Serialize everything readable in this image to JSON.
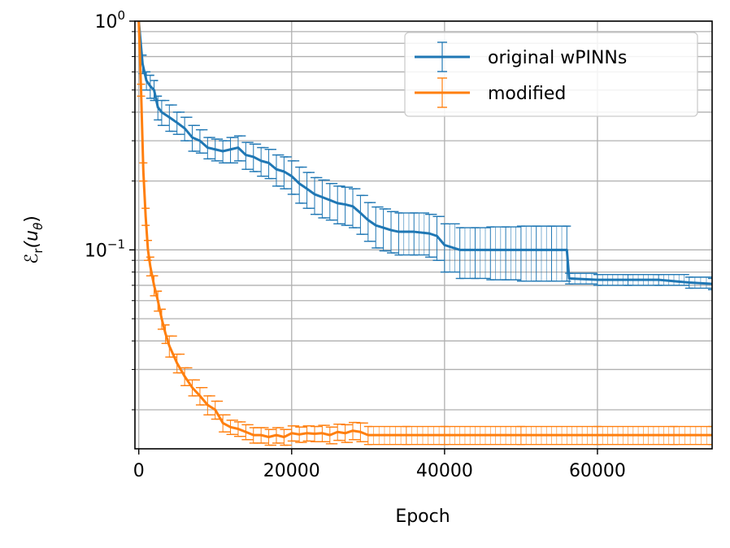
{
  "chart_data": {
    "type": "line",
    "xlabel": "Epoch",
    "ylabel": "ℰr(uθ)",
    "ylabel_main": "ℰ",
    "ylabel_sub": "r",
    "ylabel_rest": "(u",
    "ylabel_sub2": "θ",
    "ylabel_close": ")",
    "xlim": [
      -500,
      75000
    ],
    "ylim": [
      0.0135,
      1.0
    ],
    "yscale": "log",
    "grid": true,
    "legend_position": "top-right",
    "x_ticks": [
      0,
      20000,
      40000,
      60000
    ],
    "x_tick_labels": [
      "0",
      "20000",
      "40000",
      "60000"
    ],
    "y_ticks": [
      {
        "value": 1.0,
        "base": "10",
        "exp": "0"
      },
      {
        "value": 0.1,
        "base": "10",
        "exp": "−1"
      }
    ],
    "series": [
      {
        "name": "original wPINNs",
        "color": "#1f77b4",
        "points": [
          [
            0,
            1.0,
            0.0
          ],
          [
            500,
            0.65,
            0.06
          ],
          [
            1000,
            0.55,
            0.05
          ],
          [
            1500,
            0.52,
            0.06
          ],
          [
            2000,
            0.5,
            0.05
          ],
          [
            2500,
            0.42,
            0.05
          ],
          [
            3000,
            0.4,
            0.05
          ],
          [
            4000,
            0.38,
            0.05
          ],
          [
            5000,
            0.36,
            0.04
          ],
          [
            6000,
            0.34,
            0.04
          ],
          [
            7000,
            0.31,
            0.04
          ],
          [
            8000,
            0.3,
            0.035
          ],
          [
            9000,
            0.28,
            0.03
          ],
          [
            10000,
            0.275,
            0.03
          ],
          [
            11000,
            0.27,
            0.03
          ],
          [
            12000,
            0.275,
            0.035
          ],
          [
            13000,
            0.28,
            0.035
          ],
          [
            14000,
            0.26,
            0.035
          ],
          [
            15000,
            0.255,
            0.035
          ],
          [
            16000,
            0.245,
            0.035
          ],
          [
            17000,
            0.24,
            0.035
          ],
          [
            18000,
            0.225,
            0.035
          ],
          [
            19000,
            0.22,
            0.035
          ],
          [
            20000,
            0.21,
            0.035
          ],
          [
            21000,
            0.195,
            0.035
          ],
          [
            22000,
            0.185,
            0.033
          ],
          [
            23000,
            0.175,
            0.032
          ],
          [
            24000,
            0.17,
            0.032
          ],
          [
            25000,
            0.165,
            0.03
          ],
          [
            26000,
            0.16,
            0.03
          ],
          [
            27000,
            0.158,
            0.03
          ],
          [
            28000,
            0.155,
            0.03
          ],
          [
            29000,
            0.145,
            0.028
          ],
          [
            30000,
            0.135,
            0.026
          ],
          [
            31000,
            0.128,
            0.026
          ],
          [
            32000,
            0.125,
            0.026
          ],
          [
            33000,
            0.122,
            0.025
          ],
          [
            34000,
            0.12,
            0.025
          ],
          [
            36000,
            0.12,
            0.025
          ],
          [
            38000,
            0.118,
            0.025
          ],
          [
            39000,
            0.115,
            0.025
          ],
          [
            40000,
            0.105,
            0.025
          ],
          [
            42000,
            0.1,
            0.025
          ],
          [
            44000,
            0.1,
            0.025
          ],
          [
            46000,
            0.1,
            0.026
          ],
          [
            48000,
            0.1,
            0.026
          ],
          [
            50000,
            0.1,
            0.027
          ],
          [
            52000,
            0.1,
            0.027
          ],
          [
            54000,
            0.1,
            0.027
          ],
          [
            56000,
            0.1,
            0.027
          ],
          [
            56300,
            0.075,
            0.004
          ],
          [
            60000,
            0.074,
            0.004
          ],
          [
            64000,
            0.074,
            0.004
          ],
          [
            68000,
            0.074,
            0.004
          ],
          [
            72000,
            0.072,
            0.004
          ],
          [
            75000,
            0.071,
            0.004
          ]
        ]
      },
      {
        "name": "modified",
        "color": "#ff7f0e",
        "points": [
          [
            0,
            1.0,
            0.0
          ],
          [
            300,
            0.5,
            0.03
          ],
          [
            600,
            0.22,
            0.02
          ],
          [
            900,
            0.14,
            0.012
          ],
          [
            1200,
            0.1,
            0.01
          ],
          [
            1500,
            0.085,
            0.008
          ],
          [
            2000,
            0.07,
            0.007
          ],
          [
            2500,
            0.06,
            0.006
          ],
          [
            3000,
            0.05,
            0.005
          ],
          [
            3500,
            0.043,
            0.004
          ],
          [
            4000,
            0.038,
            0.004
          ],
          [
            5000,
            0.032,
            0.003
          ],
          [
            6000,
            0.028,
            0.0025
          ],
          [
            7000,
            0.025,
            0.002
          ],
          [
            8000,
            0.023,
            0.002
          ],
          [
            9000,
            0.021,
            0.002
          ],
          [
            10000,
            0.02,
            0.0018
          ],
          [
            11000,
            0.0175,
            0.0015
          ],
          [
            12000,
            0.0168,
            0.0012
          ],
          [
            13000,
            0.0165,
            0.0012
          ],
          [
            14000,
            0.016,
            0.0012
          ],
          [
            15000,
            0.0155,
            0.0012
          ],
          [
            16000,
            0.0155,
            0.0012
          ],
          [
            17000,
            0.0152,
            0.0012
          ],
          [
            18000,
            0.0155,
            0.0012
          ],
          [
            19000,
            0.0152,
            0.0012
          ],
          [
            20000,
            0.0158,
            0.0012
          ],
          [
            21000,
            0.0156,
            0.0012
          ],
          [
            22000,
            0.0158,
            0.0012
          ],
          [
            23000,
            0.0157,
            0.0012
          ],
          [
            24000,
            0.0158,
            0.0013
          ],
          [
            25000,
            0.0155,
            0.0013
          ],
          [
            26000,
            0.016,
            0.0013
          ],
          [
            27000,
            0.0158,
            0.0014
          ],
          [
            28000,
            0.0162,
            0.0014
          ],
          [
            29000,
            0.016,
            0.0015
          ],
          [
            30000,
            0.0155,
            0.0014
          ],
          [
            35000,
            0.0155,
            0.0014
          ],
          [
            40000,
            0.0155,
            0.0014
          ],
          [
            50000,
            0.0155,
            0.0014
          ],
          [
            60000,
            0.0155,
            0.0014
          ],
          [
            70000,
            0.0155,
            0.0014
          ],
          [
            75000,
            0.0155,
            0.0014
          ]
        ]
      }
    ]
  }
}
